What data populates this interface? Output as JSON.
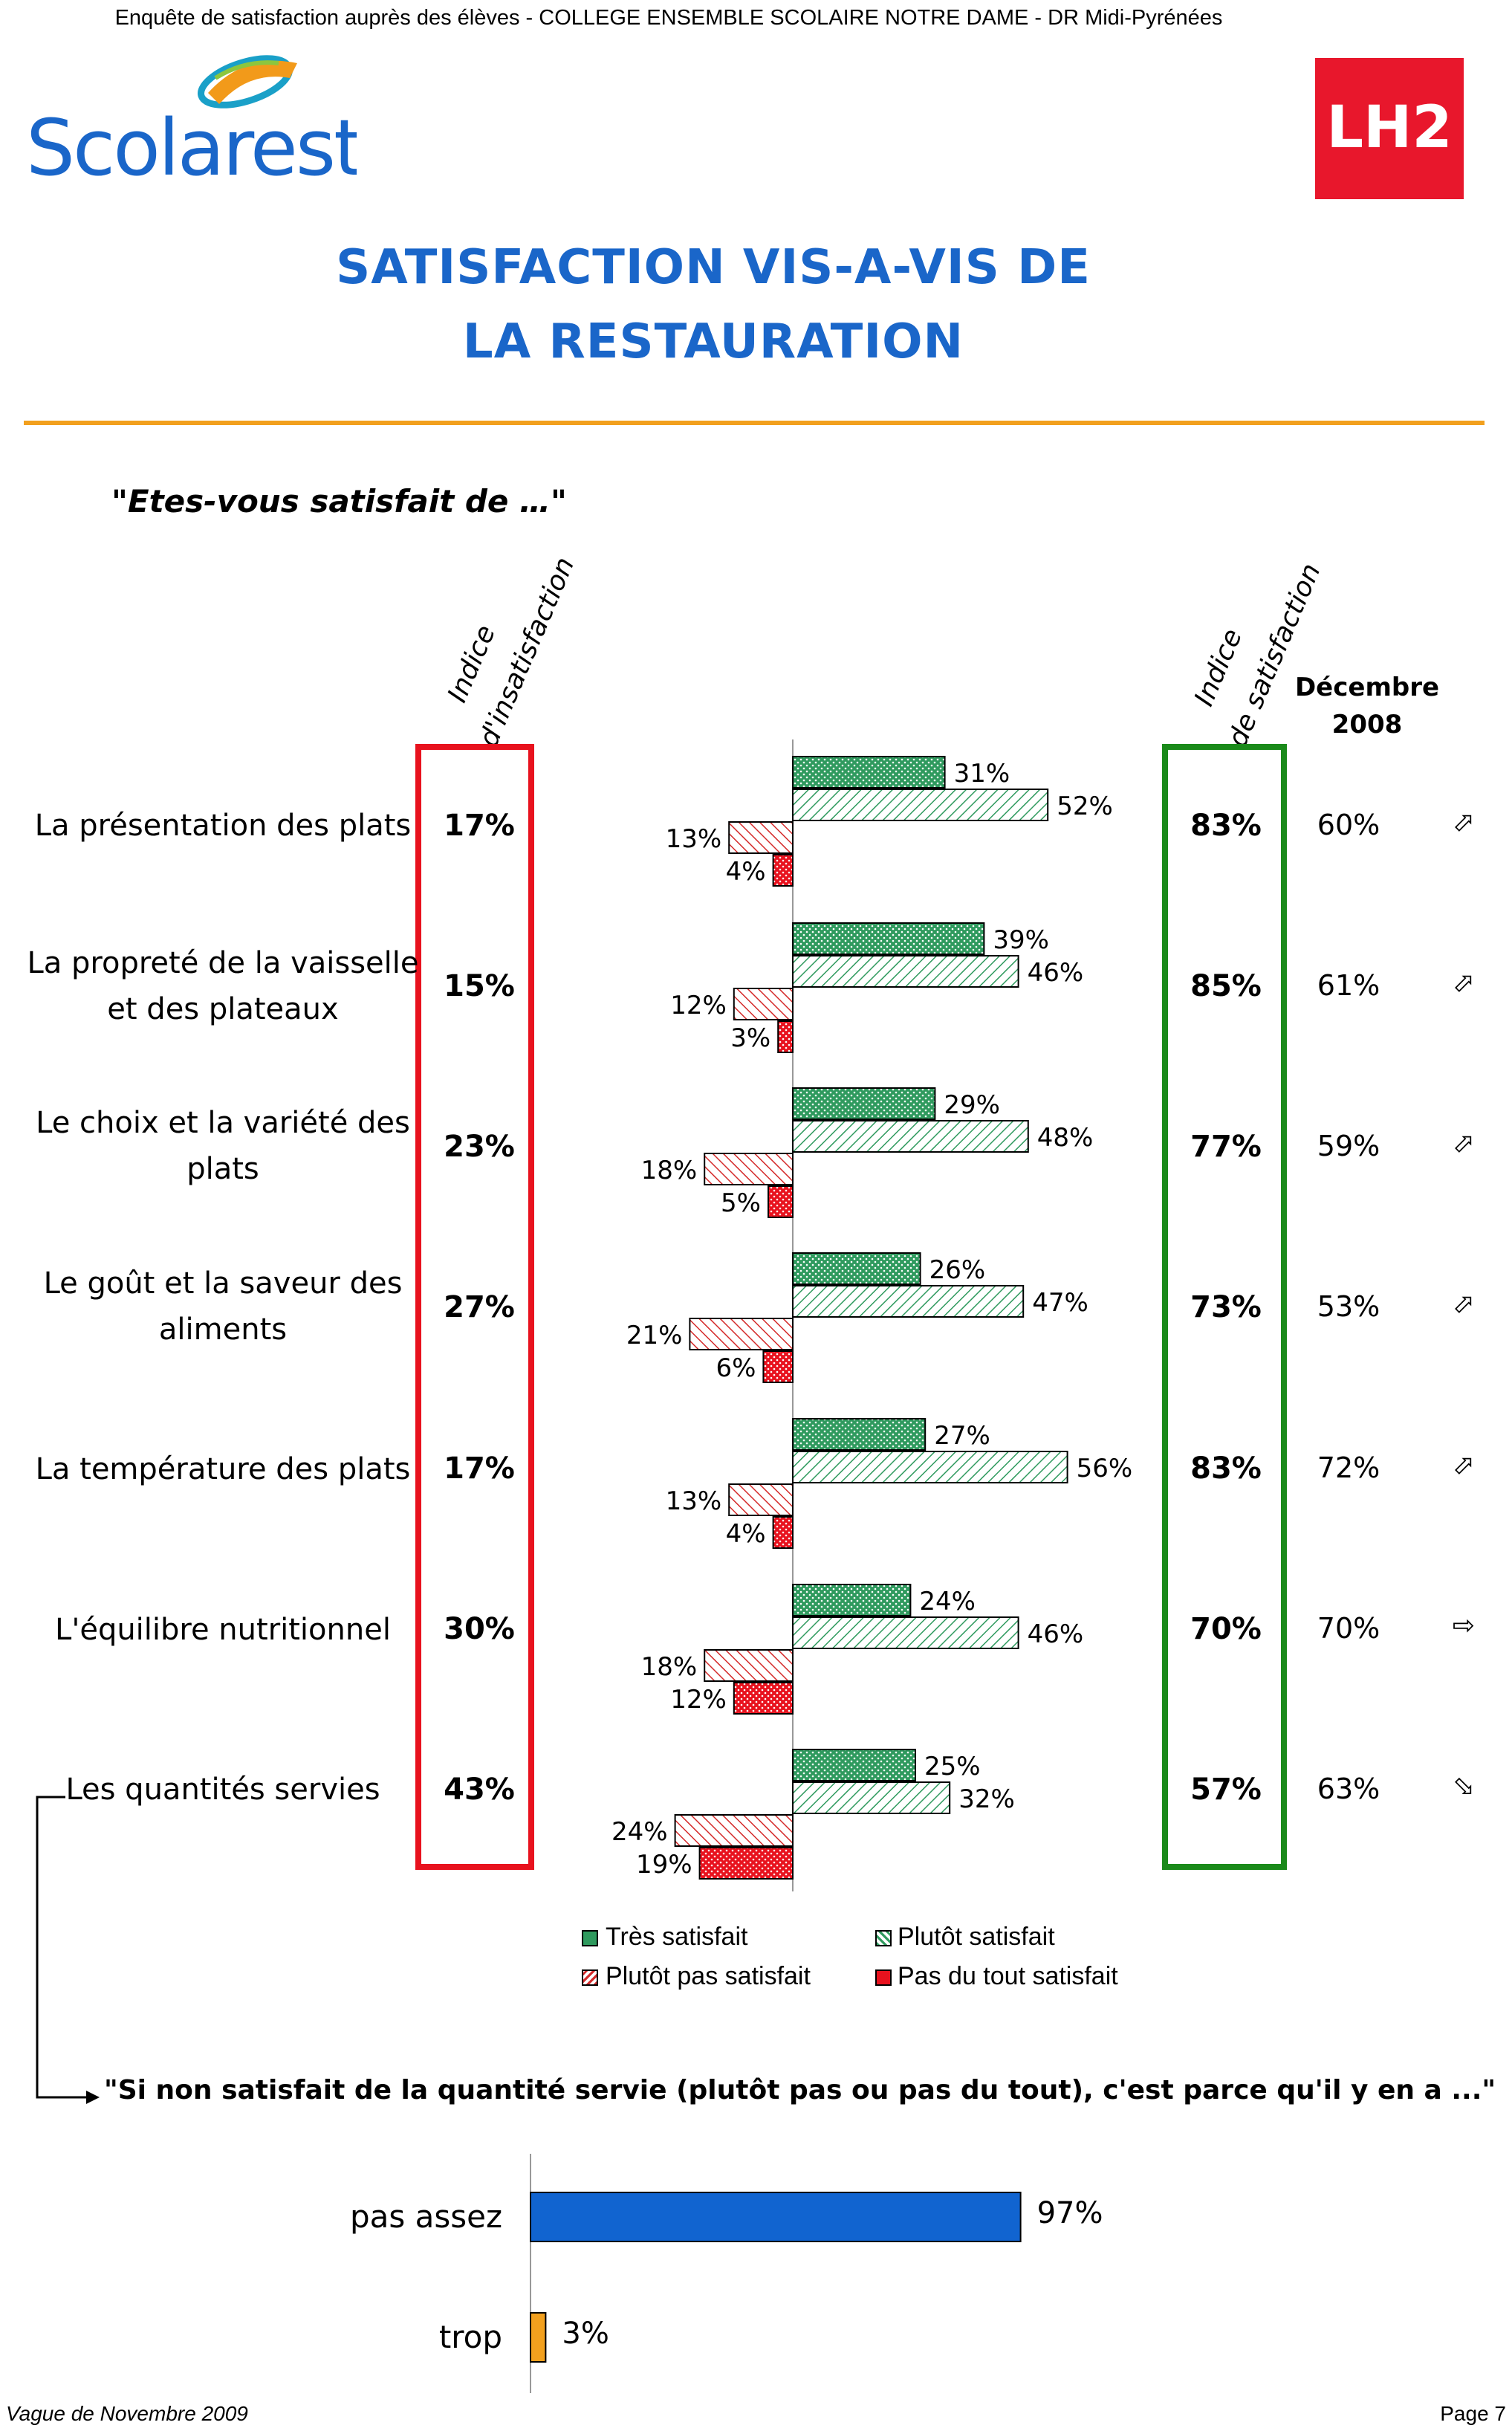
{
  "header": {
    "survey_title": "Enquête de satisfaction auprès des élèves - COLLEGE ENSEMBLE SCOLAIRE NOTRE DAME - DR Midi-Pyrénées",
    "brand_left": "Scolarest",
    "brand_right": "LH2"
  },
  "title": {
    "line1": "SATISFACTION VIS-A-VIS DE",
    "line2": "LA RESTAURATION"
  },
  "question": "\"Etes-vous satisfait de …\"",
  "columns": {
    "dissatisfaction_line1": "Indice",
    "dissatisfaction_line2": "d'insatisfaction",
    "satisfaction_line1": "Indice",
    "satisfaction_line2": "de satisfaction",
    "previous_line1": "Décembre",
    "previous_line2": "2008"
  },
  "rows": [
    {
      "label": "La présentation des plats",
      "dissatisfaction_index": "17%",
      "satisfaction_index": "83%",
      "december_2008": "60%",
      "trend": "up"
    },
    {
      "label": "La propreté de la vaisselle et des plateaux",
      "dissatisfaction_index": "15%",
      "satisfaction_index": "85%",
      "december_2008": "61%",
      "trend": "up"
    },
    {
      "label": "Le choix et la variété des plats",
      "dissatisfaction_index": "23%",
      "satisfaction_index": "77%",
      "december_2008": "59%",
      "trend": "up"
    },
    {
      "label": "Le goût et la saveur des aliments",
      "dissatisfaction_index": "27%",
      "satisfaction_index": "73%",
      "december_2008": "53%",
      "trend": "up"
    },
    {
      "label": "La température des plats",
      "dissatisfaction_index": "17%",
      "satisfaction_index": "83%",
      "december_2008": "72%",
      "trend": "up"
    },
    {
      "label": "L'équilibre nutritionnel",
      "dissatisfaction_index": "30%",
      "satisfaction_index": "70%",
      "december_2008": "70%",
      "trend": "right"
    },
    {
      "label": "Les quantités servies",
      "dissatisfaction_index": "43%",
      "satisfaction_index": "57%",
      "december_2008": "63%",
      "trend": "down"
    }
  ],
  "legend": {
    "tres_satisfait": "Très satisfait",
    "plutot_satisfait": "Plutôt satisfait",
    "plutot_pas_satisfait": "Plutôt pas satisfait",
    "pas_du_tout_satisfait": "Pas du tout satisfait"
  },
  "colors": {
    "title_blue": "#1a66c9",
    "rule_orange": "#f2a01e",
    "dissatisfaction_box_red": "#e8121e",
    "satisfaction_box_green": "#1a8a1a",
    "tres_satisfait": "#2f9a5e",
    "plutot_satisfait": "#2f9a5e",
    "plutot_pas_satisfait": "#d42a2a",
    "pas_du_tout_satisfait": "#e8121e",
    "pas_assez": "#1164d0",
    "trop": "#f2a01e"
  },
  "chart_data": [
    {
      "type": "bar",
      "orientation": "horizontal",
      "diverging": true,
      "categories": [
        "La présentation des plats",
        "La propreté de la vaisselle et des plateaux",
        "Le choix et la variété des plats",
        "Le goût et la saveur des aliments",
        "La température des plats",
        "L'équilibre nutritionnel",
        "Les quantités servies"
      ],
      "series": [
        {
          "name": "Très satisfait",
          "values": [
            31,
            39,
            29,
            26,
            27,
            24,
            25
          ],
          "labels": [
            "31%",
            "39%",
            "29%",
            "26%",
            "27%",
            "24%",
            "25%"
          ]
        },
        {
          "name": "Plutôt satisfait",
          "values": [
            52,
            46,
            48,
            47,
            56,
            46,
            32
          ],
          "labels": [
            "52%",
            "46%",
            "48%",
            "47%",
            "56%",
            "46%",
            "32%"
          ]
        },
        {
          "name": "Plutôt pas satisfait",
          "values": [
            13,
            12,
            18,
            21,
            13,
            18,
            24
          ],
          "labels": [
            "13%",
            "12%",
            "18%",
            "21%",
            "13%",
            "18%",
            "24%"
          ]
        },
        {
          "name": "Pas du tout satisfait",
          "values": [
            4,
            3,
            5,
            6,
            4,
            12,
            19
          ],
          "labels": [
            "4%",
            "3%",
            "5%",
            "6%",
            "4%",
            "12%",
            "19%"
          ]
        }
      ],
      "unit": "%",
      "legend": "bottom",
      "grid": false
    },
    {
      "type": "bar",
      "orientation": "horizontal",
      "title": "\"Si non satisfait de la quantité servie (plutôt pas ou pas du tout), c'est parce qu'il y en a ...\"",
      "categories": [
        "pas assez",
        "trop"
      ],
      "values": [
        97,
        3
      ],
      "labels": [
        "97%",
        "3%"
      ],
      "unit": "%",
      "grid": false
    }
  ],
  "footer": {
    "left": "Vague de Novembre 2009",
    "right": "Page 7"
  }
}
